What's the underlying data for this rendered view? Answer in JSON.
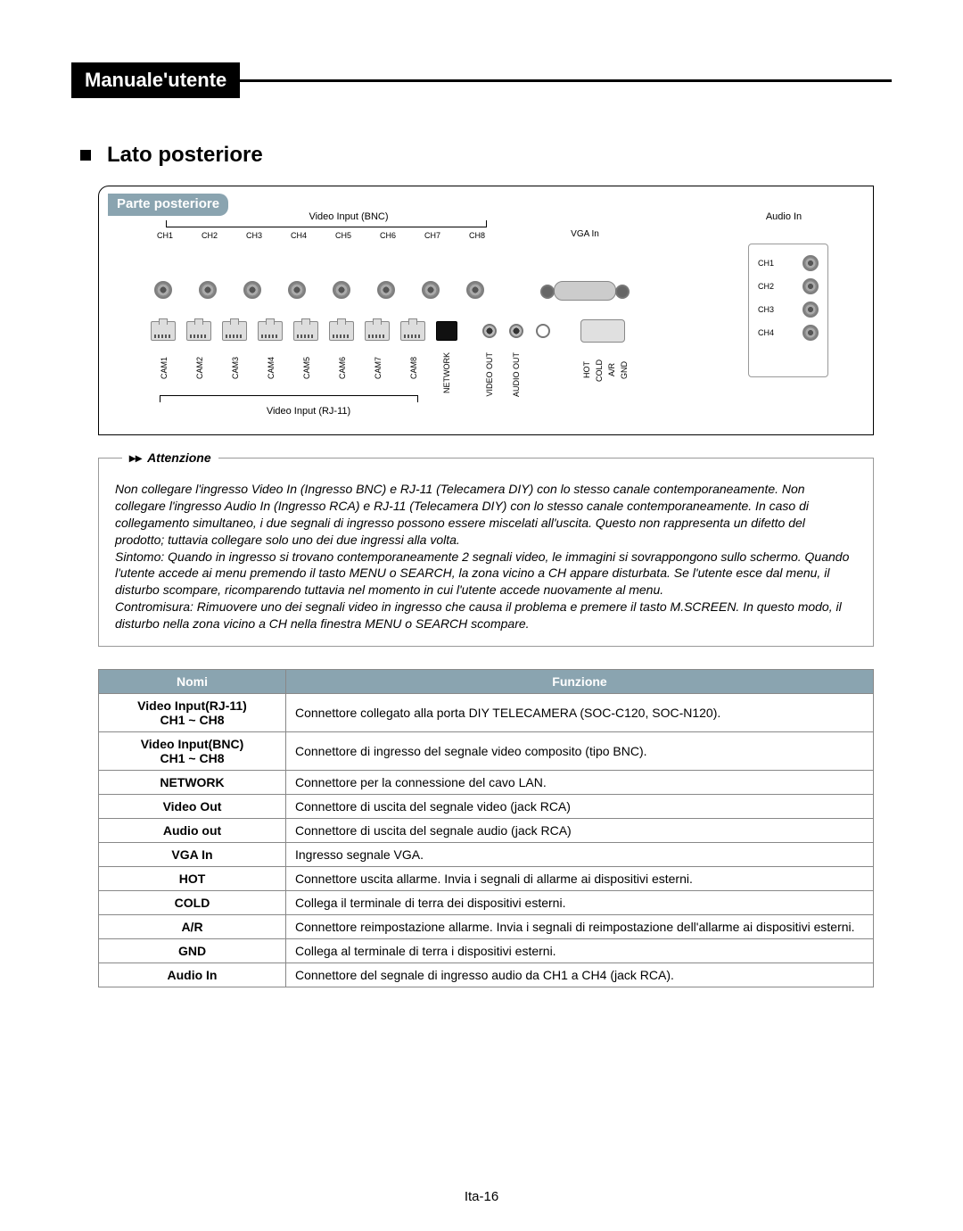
{
  "header": {
    "title": "Manuale'utente"
  },
  "section": {
    "heading": "Lato posteriore"
  },
  "panel": {
    "label": "Parte posteriore",
    "video_bnc_label": "Video Input (BNC)",
    "video_rj11_label": "Video Input (RJ-11)",
    "audio_in_label": "Audio In",
    "vga_label": "VGA In",
    "ch_labels": [
      "CH1",
      "CH2",
      "CH3",
      "CH4",
      "CH5",
      "CH6",
      "CH7",
      "CH8"
    ],
    "cam_labels": [
      "CAM1",
      "CAM2",
      "CAM3",
      "CAM4",
      "CAM5",
      "CAM6",
      "CAM7",
      "CAM8"
    ],
    "network_label": "NETWORK",
    "video_out_label": "VIDEO OUT",
    "audio_out_label": "AUDIO OUT",
    "term_labels": [
      "HOT",
      "COLD",
      "A/R",
      "GND"
    ],
    "audio_ch": [
      "CH1",
      "CH2",
      "CH3",
      "CH4"
    ]
  },
  "attention": {
    "title": "Attenzione",
    "body": "Non collegare l'ingresso Video In (Ingresso BNC) e RJ-11 (Telecamera DIY) con lo stesso canale contemporaneamente. Non collegare l'ingresso Audio In (Ingresso RCA) e RJ-11 (Telecamera DIY) con lo stesso canale contemporaneamente. In caso di collegamento simultaneo, i due segnali di ingresso possono essere miscelati all'uscita. Questo non rappresenta un difetto del prodotto; tuttavia collegare solo uno dei due ingressi alla volta.\nSintomo: Quando in ingresso si trovano contemporaneamente 2 segnali video, le immagini si sovrappongono sullo schermo. Quando l'utente accede ai menu premendo il tasto MENU o SEARCH, la zona vicino a CH appare disturbata. Se l'utente esce dal menu, il disturbo scompare, ricomparendo tuttavia nel momento in cui l'utente accede nuovamente al menu.\nContromisura: Rimuovere uno dei segnali video in ingresso che causa il problema e premere il tasto M.SCREEN. In questo modo, il disturbo nella zona vicino a CH nella finestra MENU o SEARCH scompare."
  },
  "table": {
    "headers": {
      "name": "Nomi",
      "func": "Funzione"
    },
    "rows": [
      {
        "name": "Video Input(RJ-11)\nCH1 ~ CH8",
        "func": "Connettore collegato alla porta DIY TELECAMERA (SOC-C120, SOC-N120)."
      },
      {
        "name": "Video Input(BNC)\nCH1 ~ CH8",
        "func": "Connettore di ingresso del segnale video composito (tipo BNC)."
      },
      {
        "name": "NETWORK",
        "func": "Connettore per la connessione del cavo LAN."
      },
      {
        "name": "Video Out",
        "func": "Connettore di uscita del segnale video (jack RCA)"
      },
      {
        "name": "Audio out",
        "func": "Connettore di uscita del segnale audio (jack RCA)"
      },
      {
        "name": "VGA In",
        "func": "Ingresso segnale VGA."
      },
      {
        "name": "HOT",
        "func": "Connettore uscita allarme. Invia i segnali di allarme ai dispositivi esterni."
      },
      {
        "name": "COLD",
        "func": "Collega il terminale di terra dei dispositivi esterni."
      },
      {
        "name": "A/R",
        "func": "Connettore reimpostazione allarme. Invia i segnali di reimpostazione dell'allarme ai dispositivi esterni."
      },
      {
        "name": "GND",
        "func": "Collega al terminale di terra i dispositivi esterni."
      },
      {
        "name": "Audio In",
        "func": "Connettore del segnale di ingresso audio da CH1 a CH4 (jack RCA)."
      }
    ]
  },
  "page_number": "Ita-16",
  "colors": {
    "header_bg": "#000000",
    "accent": "#8aa4b0",
    "border": "#888888"
  }
}
